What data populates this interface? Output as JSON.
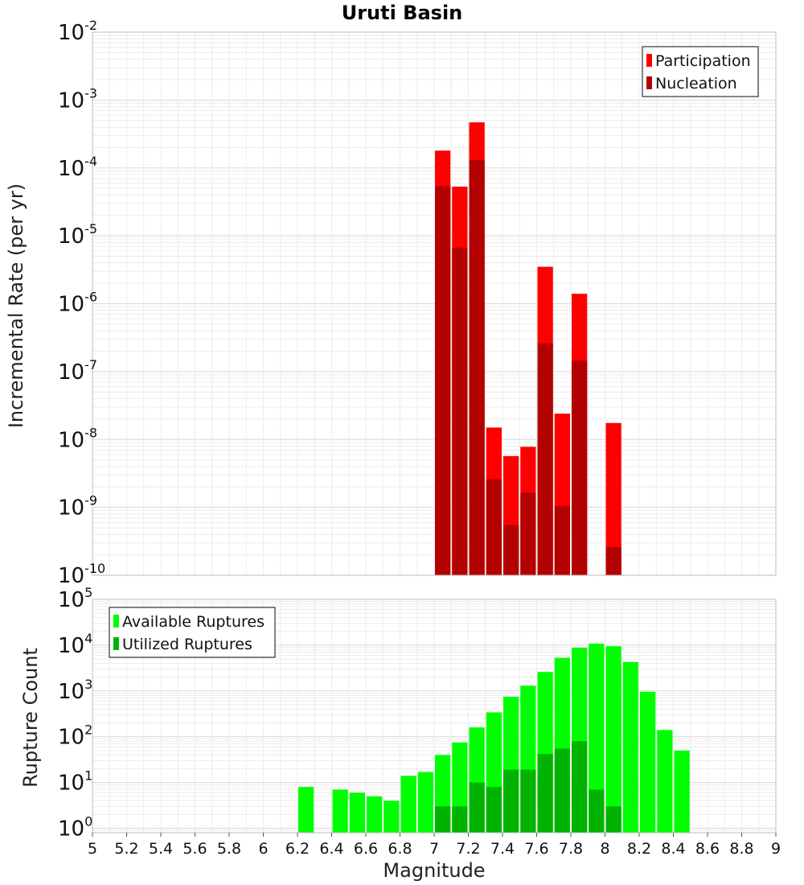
{
  "chart_data": [
    {
      "type": "bar",
      "title": "Uruti Basin",
      "xlabel": "",
      "ylabel": "Incremental Rate (per yr)",
      "yscale": "log",
      "ylim": [
        1e-10,
        0.01
      ],
      "xlim": [
        5,
        9
      ],
      "y_tick_base": "10",
      "y_tick_exponents": [
        "-10",
        "-9",
        "-8",
        "-7",
        "-6",
        "-5",
        "-4",
        "-3",
        "-2"
      ],
      "grid": true,
      "legend_position": "top-right",
      "colors": {
        "Participation": "#ff0000",
        "Nucleation": "#b30000"
      },
      "x": [
        7.05,
        7.15,
        7.25,
        7.35,
        7.45,
        7.55,
        7.65,
        7.75,
        7.85,
        8.05
      ],
      "series": [
        {
          "name": "Participation",
          "values": [
            0.00018,
            5.3e-05,
            0.00047,
            1.5e-08,
            5.7e-09,
            7.8e-09,
            3.5e-06,
            2.4e-08,
            1.4e-06,
            1.75e-08
          ]
        },
        {
          "name": "Nucleation",
          "values": [
            5.4e-05,
            6.7e-06,
            0.00013,
            2.6e-09,
            5.5e-10,
            1.65e-09,
            2.6e-07,
            1.05e-09,
            1.45e-07,
            2.6e-10
          ]
        }
      ]
    },
    {
      "type": "bar",
      "xlabel": "Magnitude",
      "ylabel": "Rupture Count",
      "yscale": "log",
      "ylim": [
        0.8,
        100000.0
      ],
      "xlim": [
        5,
        9
      ],
      "y_tick_base": "10",
      "y_tick_exponents": [
        "0",
        "1",
        "2",
        "3",
        "4",
        "5"
      ],
      "x_tick_labels": [
        "5",
        "5.2",
        "5.4",
        "5.6",
        "5.8",
        "6",
        "6.2",
        "6.4",
        "6.6",
        "6.8",
        "7",
        "7.2",
        "7.4",
        "7.6",
        "7.8",
        "8",
        "8.2",
        "8.4",
        "8.6",
        "8.8",
        "9"
      ],
      "grid": true,
      "legend_position": "top-left",
      "colors": {
        "Available Ruptures": "#00ff00",
        "Utilized Ruptures": "#00b300"
      },
      "series": [
        {
          "name": "Available Ruptures",
          "x": [
            6.25,
            6.45,
            6.55,
            6.65,
            6.75,
            6.85,
            6.95,
            7.05,
            7.15,
            7.25,
            7.35,
            7.45,
            7.55,
            7.65,
            7.75,
            7.85,
            7.95,
            8.05,
            8.15,
            8.25,
            8.35,
            8.45
          ],
          "values": [
            8,
            7,
            6,
            5,
            4,
            14,
            17,
            40,
            75,
            160,
            340,
            750,
            1300,
            2600,
            5300,
            8800,
            10800,
            9500,
            4300,
            960,
            140,
            50
          ]
        },
        {
          "name": "Utilized Ruptures",
          "x": [
            7.05,
            7.15,
            7.25,
            7.35,
            7.45,
            7.55,
            7.65,
            7.75,
            7.85,
            7.95,
            8.05
          ],
          "values": [
            3,
            3,
            10,
            8,
            19,
            19,
            42,
            55,
            80,
            7,
            3
          ]
        }
      ]
    }
  ]
}
